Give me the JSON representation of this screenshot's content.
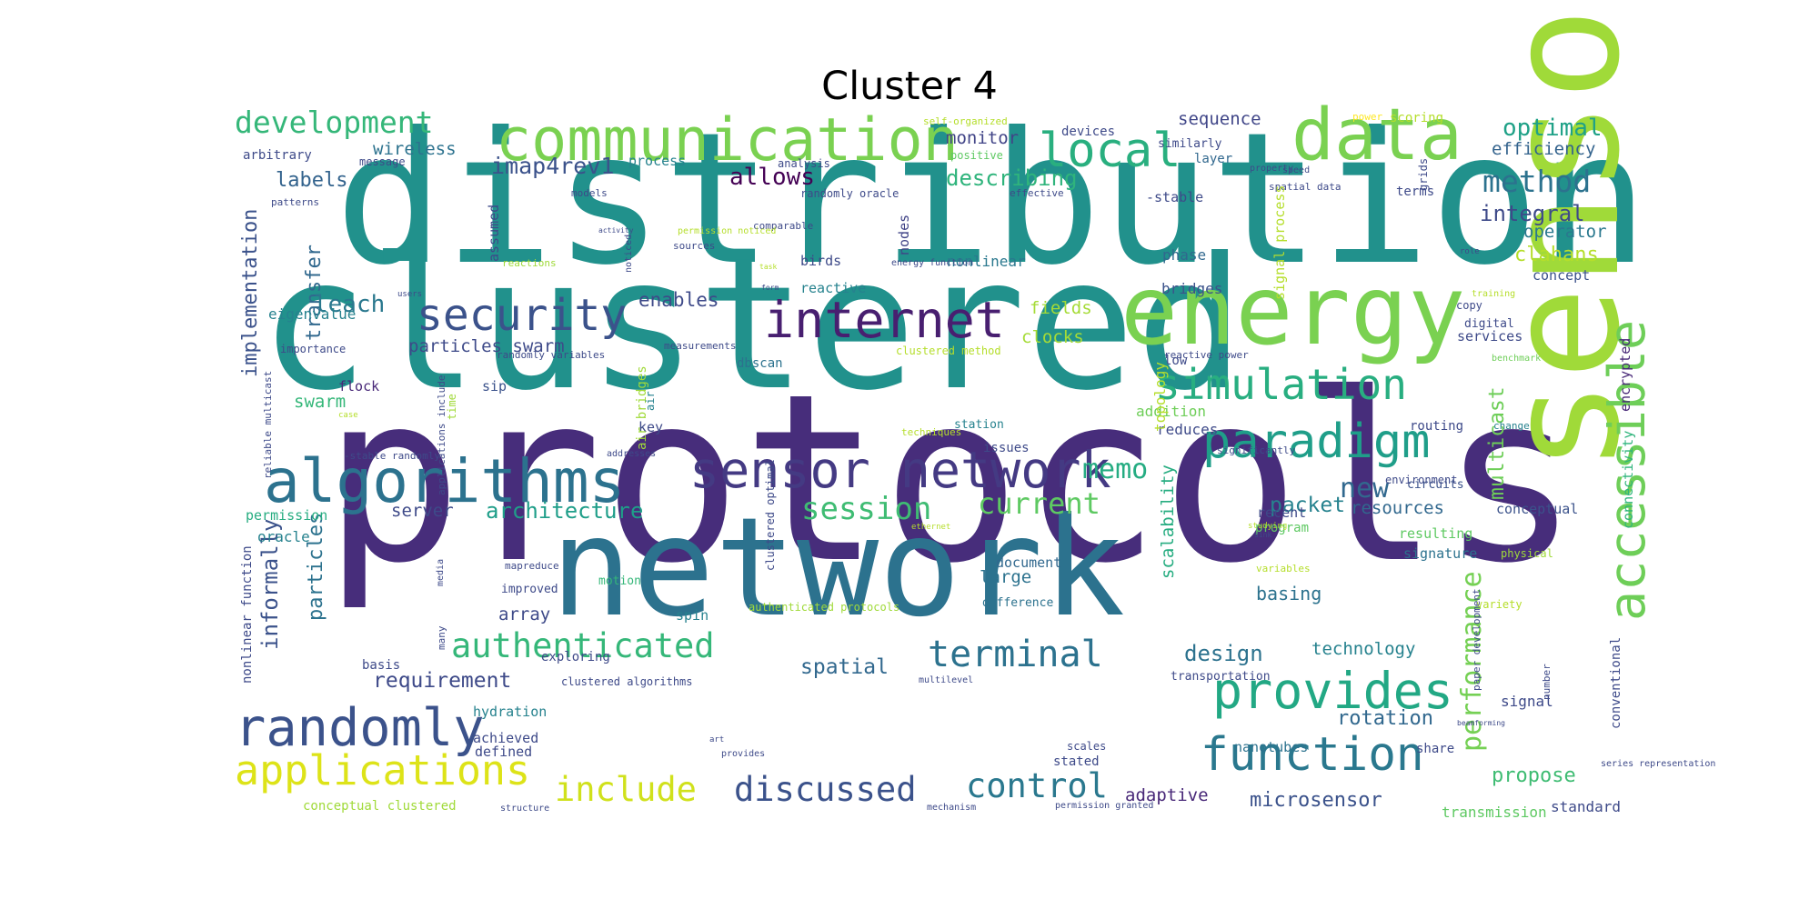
{
  "title": "Cluster 4",
  "words": [
    {
      "text": "distribution",
      "color": "#21918c"
    },
    {
      "text": "clustered",
      "color": "#21918c"
    },
    {
      "text": "protocols",
      "color": "#472d7b"
    },
    {
      "text": "network",
      "color": "#2c728e"
    },
    {
      "text": "sensor",
      "color": "#a0da39"
    },
    {
      "text": "communication",
      "color": "#7ad151"
    },
    {
      "text": "data",
      "color": "#7ad151"
    },
    {
      "text": "energy",
      "color": "#7ad151"
    },
    {
      "text": "algorithms",
      "color": "#2c728e"
    },
    {
      "text": "sensor network",
      "color": "#443a83"
    },
    {
      "text": "internet",
      "color": "#481f70"
    },
    {
      "text": "security",
      "color": "#3b528b"
    },
    {
      "text": "local",
      "color": "#29af7f"
    },
    {
      "text": "simulation",
      "color": "#28ae80"
    },
    {
      "text": "paradigm",
      "color": "#1f9e89"
    },
    {
      "text": "accessible",
      "color": "#6ece58"
    },
    {
      "text": "randomly",
      "color": "#3b528b"
    },
    {
      "text": "applications",
      "color": "#dde318"
    },
    {
      "text": "provides",
      "color": "#22a884"
    },
    {
      "text": "function",
      "color": "#2a788e"
    },
    {
      "text": "authenticated",
      "color": "#35b779"
    },
    {
      "text": "terminal",
      "color": "#2c728e"
    },
    {
      "text": "discussed",
      "color": "#3b528b"
    },
    {
      "text": "control",
      "color": "#2a788e"
    },
    {
      "text": "include",
      "color": "#d0e11c"
    },
    {
      "text": "development",
      "color": "#35b779"
    },
    {
      "text": "method",
      "color": "#2c728e"
    },
    {
      "text": "performance",
      "color": "#75d054"
    },
    {
      "text": "session",
      "color": "#3fbc73"
    },
    {
      "text": "current",
      "color": "#5ec962"
    },
    {
      "text": "memo",
      "color": "#25ac82"
    },
    {
      "text": "new",
      "color": "#31688e"
    },
    {
      "text": "architecture",
      "color": "#1f9e89"
    },
    {
      "text": "propose",
      "color": "#3fbc73"
    },
    {
      "text": "rotation",
      "color": "#31688e"
    },
    {
      "text": "design",
      "color": "#2c728e"
    },
    {
      "text": "microsensor",
      "color": "#3b528b"
    },
    {
      "text": "imap4rev1",
      "color": "#3b528b"
    },
    {
      "text": "allows",
      "color": "#440154"
    },
    {
      "text": "describing",
      "color": "#2fb47c"
    },
    {
      "text": "integral",
      "color": "#3e4a89"
    },
    {
      "text": "optimal",
      "color": "#1fa187"
    },
    {
      "text": "efficiency",
      "color": "#33638d"
    },
    {
      "text": "implementation",
      "color": "#3b528b"
    },
    {
      "text": "transfer",
      "color": "#31688e"
    },
    {
      "text": "leach",
      "color": "#2a788e"
    },
    {
      "text": "enables",
      "color": "#3e4a89"
    },
    {
      "text": "labels",
      "color": "#33638d"
    },
    {
      "text": "wireless",
      "color": "#2c728e"
    },
    {
      "text": "monitor",
      "color": "#414487"
    },
    {
      "text": "sequence",
      "color": "#404688"
    },
    {
      "text": "operator",
      "color": "#2a788e"
    },
    {
      "text": "clahans",
      "color": "#b5de2b"
    },
    {
      "text": "concept",
      "color": "#3b528b"
    },
    {
      "text": "packet",
      "color": "#26828e"
    },
    {
      "text": "resources",
      "color": "#31688e"
    },
    {
      "text": "multicast",
      "color": "#6ece58"
    },
    {
      "text": "scalability",
      "color": "#27ad81"
    },
    {
      "text": "particles",
      "color": "#2c728e"
    },
    {
      "text": "informally",
      "color": "#3b528b"
    },
    {
      "text": "spatial",
      "color": "#31688e"
    },
    {
      "text": "requirement",
      "color": "#3e4a89"
    },
    {
      "text": "technology",
      "color": "#26828e"
    },
    {
      "text": "basing",
      "color": "#2c728e"
    },
    {
      "text": "large",
      "color": "#2c728e"
    },
    {
      "text": "array",
      "color": "#3e4a89"
    },
    {
      "text": "swarm",
      "color": "#35b779"
    },
    {
      "text": "particles swarm",
      "color": "#3e4a89"
    },
    {
      "text": "clocks",
      "color": "#a5db36"
    },
    {
      "text": "fields",
      "color": "#a5db36"
    },
    {
      "text": "nonlinear",
      "color": "#2a788e"
    },
    {
      "text": "server",
      "color": "#3e4a89"
    },
    {
      "text": "oracle",
      "color": "#26828e"
    },
    {
      "text": "permission",
      "color": "#27ad81"
    },
    {
      "text": "eigenvalue",
      "color": "#26828e"
    },
    {
      "text": "adaptive",
      "color": "#482878"
    },
    {
      "text": "addition",
      "color": "#6ece58"
    },
    {
      "text": "reduces",
      "color": "#3e4a89"
    },
    {
      "text": "topology",
      "color": "#b5de2b"
    },
    {
      "text": "bridges",
      "color": "#3b528b"
    },
    {
      "text": "phase",
      "color": "#31688e"
    },
    {
      "text": "birds",
      "color": "#3e4a89"
    },
    {
      "text": "nodes",
      "color": "#414487"
    },
    {
      "text": "assumed",
      "color": "#3e4a89"
    },
    {
      "text": "reactive",
      "color": "#26828e"
    },
    {
      "text": "dbscan",
      "color": "#2c728e"
    },
    {
      "text": "flock",
      "color": "#482878"
    },
    {
      "text": "sip",
      "color": "#3b528b"
    },
    {
      "text": "key",
      "color": "#3e4a89"
    },
    {
      "text": "document",
      "color": "#31688e"
    },
    {
      "text": "difference",
      "color": "#2c728e"
    },
    {
      "text": "signature",
      "color": "#2c728e"
    },
    {
      "text": "resulting",
      "color": "#5ec962"
    },
    {
      "text": "recent",
      "color": "#3e4a89"
    },
    {
      "text": "conceptual",
      "color": "#3b528b"
    },
    {
      "text": "connectivity",
      "color": "#2fb47c"
    },
    {
      "text": "encrypted",
      "color": "#482878"
    },
    {
      "text": "routing",
      "color": "#3e4a89"
    },
    {
      "text": "circuits",
      "color": "#3b528b"
    },
    {
      "text": "environment",
      "color": "#3e4a89"
    },
    {
      "text": "issues",
      "color": "#3e4a89"
    },
    {
      "text": "station",
      "color": "#26828e"
    },
    {
      "text": "services",
      "color": "#3e4a89"
    },
    {
      "text": "digital",
      "color": "#3e4a89"
    },
    {
      "text": "copy",
      "color": "#3e4a89"
    },
    {
      "text": "low",
      "color": "#3e4a89"
    },
    {
      "text": "nanotubes",
      "color": "#2c728e"
    },
    {
      "text": "stated",
      "color": "#3e4a89"
    },
    {
      "text": "scales",
      "color": "#3e4a89"
    },
    {
      "text": "share",
      "color": "#3e4a89"
    },
    {
      "text": "signal",
      "color": "#3e4a89"
    },
    {
      "text": "standard",
      "color": "#3e4a89"
    },
    {
      "text": "transmission",
      "color": "#5ec962"
    },
    {
      "text": "conventional",
      "color": "#3e4a89"
    },
    {
      "text": "transportation",
      "color": "#3e4a89"
    },
    {
      "text": "hydration",
      "color": "#26828e"
    },
    {
      "text": "achieved",
      "color": "#3e4a89"
    },
    {
      "text": "defined",
      "color": "#3e4a89"
    },
    {
      "text": "exploring",
      "color": "#3e4a89"
    },
    {
      "text": "basis",
      "color": "#3e4a89"
    },
    {
      "text": "spin",
      "color": "#26828e"
    },
    {
      "text": "motion",
      "color": "#35b779"
    },
    {
      "text": "improved",
      "color": "#3e4a89"
    },
    {
      "text": "mapreduce",
      "color": "#3e4a89"
    },
    {
      "text": "nonlinear function",
      "color": "#3e4a89"
    },
    {
      "text": "conceptual clustered",
      "color": "#a0da39"
    },
    {
      "text": "clustered algorithms",
      "color": "#3e4a89"
    },
    {
      "text": "air bridges",
      "color": "#a0da39"
    },
    {
      "text": "devices",
      "color": "#3e4a89"
    },
    {
      "text": "self-organized",
      "color": "#b5de2b"
    },
    {
      "text": "power",
      "color": "#fde725"
    },
    {
      "text": "scoring",
      "color": "#b5de2b"
    },
    {
      "text": "similarly",
      "color": "#3e4a89"
    },
    {
      "text": "layer",
      "color": "#31688e"
    },
    {
      "text": "-stable",
      "color": "#3e4a89"
    },
    {
      "text": "terms",
      "color": "#3e4a89"
    },
    {
      "text": "grids",
      "color": "#3e4a89"
    },
    {
      "text": "arbitrary",
      "color": "#3e4a89"
    },
    {
      "text": "process",
      "color": "#26828e"
    },
    {
      "text": "analysis",
      "color": "#3e4a89"
    },
    {
      "text": "positive",
      "color": "#5ec962"
    },
    {
      "text": "randomly oracle",
      "color": "#3e4a89"
    },
    {
      "text": "models",
      "color": "#3e4a89"
    },
    {
      "text": "message",
      "color": "#3e4a89"
    },
    {
      "text": "patterns",
      "color": "#3e4a89"
    },
    {
      "text": "effective",
      "color": "#3e4a89"
    },
    {
      "text": "spatial data",
      "color": "#3e4a89"
    },
    {
      "text": "signal process",
      "color": "#b5de2b"
    },
    {
      "text": "comparable",
      "color": "#3e4a89"
    },
    {
      "text": "sources",
      "color": "#3e4a89"
    },
    {
      "text": "reactions",
      "color": "#a0da39"
    },
    {
      "text": "importance",
      "color": "#3e4a89"
    },
    {
      "text": "measurements",
      "color": "#3e4a89"
    },
    {
      "text": "clustered method",
      "color": "#b5de2b"
    },
    {
      "text": "reactive power",
      "color": "#3e4a89"
    },
    {
      "text": "benchmark",
      "color": "#6ece58"
    },
    {
      "text": "randomly variables",
      "color": "#3e4a89"
    },
    {
      "text": "-stable randomly",
      "color": "#3e4a89"
    },
    {
      "text": "reliable multicast",
      "color": "#3e4a89"
    },
    {
      "text": "applications include",
      "color": "#3e4a89"
    },
    {
      "text": "many",
      "color": "#3e4a89"
    },
    {
      "text": "time",
      "color": "#a0da39"
    },
    {
      "text": "air",
      "color": "#26828e"
    },
    {
      "text": "program",
      "color": "#5ec962"
    },
    {
      "text": "significantly",
      "color": "#3e4a89"
    },
    {
      "text": "variables",
      "color": "#b5de2b"
    },
    {
      "text": "variety",
      "color": "#b5de2b"
    },
    {
      "text": "physical",
      "color": "#a0da39"
    },
    {
      "text": "change",
      "color": "#26828e"
    },
    {
      "text": "authenticated protocols",
      "color": "#a0da39"
    },
    {
      "text": "clustered optimal",
      "color": "#3e4a89"
    },
    {
      "text": "paper development",
      "color": "#3e4a89"
    },
    {
      "text": "number",
      "color": "#3e4a89"
    },
    {
      "text": "media",
      "color": "#3e4a89"
    },
    {
      "text": "structure",
      "color": "#3e4a89"
    },
    {
      "text": "provides",
      "color": "#3e4a89"
    },
    {
      "text": "mechanism",
      "color": "#3e4a89"
    },
    {
      "text": "permission granted",
      "color": "#3e4a89"
    },
    {
      "text": "series representation",
      "color": "#3e4a89"
    },
    {
      "text": "beamforming",
      "color": "#3e4a89"
    },
    {
      "text": "multilevel",
      "color": "#3e4a89"
    },
    {
      "text": "addresses",
      "color": "#3e4a89"
    },
    {
      "text": "techniques",
      "color": "#b5de2b"
    },
    {
      "text": "training",
      "color": "#b5de2b"
    },
    {
      "text": "role",
      "color": "#3e4a89"
    },
    {
      "text": "speed",
      "color": "#3e4a89"
    },
    {
      "text": "property",
      "color": "#3e4a89"
    },
    {
      "text": "energy function",
      "color": "#3e4a89"
    },
    {
      "text": "form",
      "color": "#3e4a89"
    },
    {
      "text": "task",
      "color": "#b5de2b"
    },
    {
      "text": "permission noticed",
      "color": "#b5de2b"
    },
    {
      "text": "noticed",
      "color": "#3e4a89"
    },
    {
      "text": "activity",
      "color": "#3e4a89"
    },
    {
      "text": "users",
      "color": "#3e4a89"
    },
    {
      "text": "studying",
      "color": "#b5de2b"
    },
    {
      "text": "ethernet",
      "color": "#b5de2b"
    },
    {
      "text": "sink",
      "color": "#3e4a89"
    },
    {
      "text": "case",
      "color": "#b5de2b"
    },
    {
      "text": "art",
      "color": "#3e4a89"
    }
  ]
}
